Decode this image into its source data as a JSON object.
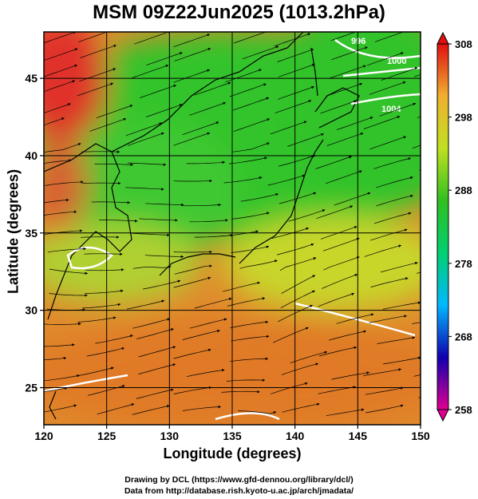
{
  "title": "MSM 09Z22Jun2025 (1013.2hPa)",
  "xaxis": {
    "label": "Longitude (degrees)",
    "ticks": [
      120,
      125,
      130,
      135,
      140,
      145,
      150
    ],
    "range": [
      120,
      150
    ]
  },
  "yaxis": {
    "label": "Latitude  (degrees)",
    "ticks": [
      25,
      30,
      35,
      40,
      45
    ],
    "range": [
      22.6,
      48
    ]
  },
  "colorbar": {
    "ticks": [
      308,
      298,
      288,
      278,
      268,
      258
    ],
    "range": [
      258,
      308
    ],
    "colors": [
      "#e00090",
      "#1000b0",
      "#00b8ff",
      "#00d070",
      "#30c020",
      "#c0e020",
      "#f0b030",
      "#e01010"
    ]
  },
  "contour_labels": [
    "996",
    "1000",
    "1004"
  ],
  "credit": {
    "line1": "Drawing by DCL (https://www.gfd-dennou.org/library/dcl/)",
    "line2": "Data from http://database.rish.kyoto-u.ac.jp/arch/jmadata/"
  },
  "chart_data": {
    "type": "heatmap",
    "title": "MSM 09Z22Jun2025 (1013.2hPa)",
    "xlabel": "Longitude (degrees)",
    "ylabel": "Latitude  (degrees)",
    "xlim": [
      120,
      150
    ],
    "ylim": [
      22.6,
      48
    ],
    "color_scale": [
      258,
      308
    ],
    "field_regions": [
      {
        "lon": 122,
        "lat": 45,
        "value": 303
      },
      {
        "lon": 121,
        "lat": 41,
        "value": 301
      },
      {
        "lon": 130,
        "lat": 44,
        "value": 291
      },
      {
        "lon": 140,
        "lat": 45,
        "value": 287
      },
      {
        "lon": 146,
        "lat": 45,
        "value": 287
      },
      {
        "lon": 128,
        "lat": 38,
        "value": 290
      },
      {
        "lon": 140,
        "lat": 36,
        "value": 296
      },
      {
        "lon": 146,
        "lat": 35,
        "value": 295
      },
      {
        "lon": 125,
        "lat": 27,
        "value": 300
      },
      {
        "lon": 140,
        "lat": 27,
        "value": 300
      },
      {
        "lon": 148,
        "lat": 25,
        "value": 300
      }
    ],
    "grid": true
  }
}
